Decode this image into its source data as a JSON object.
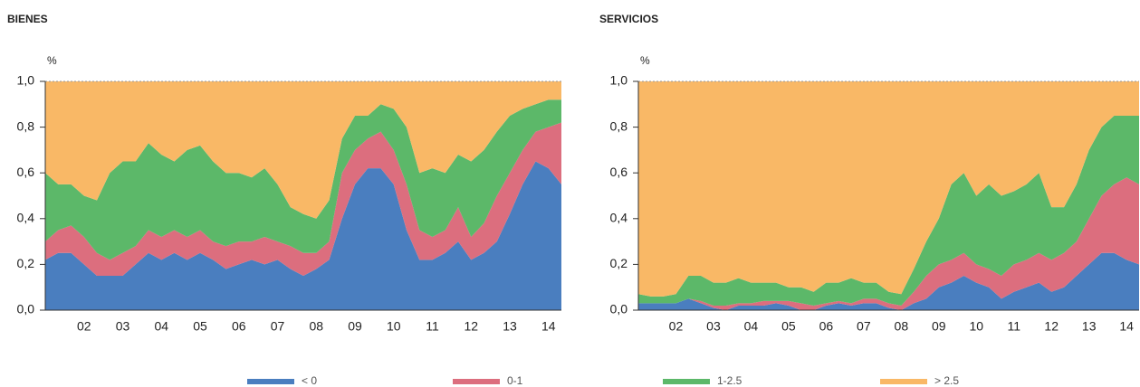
{
  "chart_data": [
    {
      "type": "stacked-area",
      "title": "BIENES",
      "y_unit": "%",
      "legend": "bottom",
      "categories": [
        null,
        null,
        null,
        "02",
        null,
        null,
        "03",
        null,
        null,
        "04",
        null,
        null,
        "05",
        null,
        null,
        "06",
        null,
        null,
        "07",
        null,
        null,
        "08",
        null,
        null,
        "09",
        null,
        null,
        "10",
        null,
        null,
        "11",
        null,
        null,
        "12",
        null,
        null,
        "13",
        null,
        null,
        "14",
        null
      ],
      "ylim": [
        0,
        1
      ],
      "yticks": [
        {
          "value": 0,
          "label": "0,0"
        },
        {
          "value": 0.2,
          "label": "0,2"
        },
        {
          "value": 0.4,
          "label": "0,4"
        },
        {
          "value": 0.6,
          "label": "0,6"
        },
        {
          "value": 0.8,
          "label": "0,8"
        },
        {
          "value": 1,
          "label": "1,0"
        }
      ],
      "series": [
        {
          "name": "< 0",
          "color": "#4a7ebf",
          "values": [
            0.22,
            0.25,
            0.25,
            0.2,
            0.15,
            0.15,
            0.15,
            0.2,
            0.25,
            0.22,
            0.25,
            0.22,
            0.25,
            0.22,
            0.18,
            0.2,
            0.22,
            0.2,
            0.22,
            0.18,
            0.15,
            0.18,
            0.22,
            0.4,
            0.55,
            0.62,
            0.62,
            0.55,
            0.35,
            0.22,
            0.22,
            0.25,
            0.3,
            0.22,
            0.25,
            0.3,
            0.42,
            0.55,
            0.65,
            0.62,
            0.55
          ]
        },
        {
          "name": "0-1",
          "color": "#dc6e7e",
          "values": [
            0.08,
            0.1,
            0.12,
            0.12,
            0.1,
            0.07,
            0.1,
            0.08,
            0.1,
            0.1,
            0.1,
            0.1,
            0.1,
            0.08,
            0.1,
            0.1,
            0.08,
            0.12,
            0.08,
            0.1,
            0.1,
            0.07,
            0.08,
            0.2,
            0.15,
            0.13,
            0.16,
            0.15,
            0.2,
            0.13,
            0.1,
            0.1,
            0.15,
            0.1,
            0.13,
            0.2,
            0.18,
            0.15,
            0.13,
            0.18,
            0.27
          ]
        },
        {
          "name": "1-2.5",
          "color": "#5cb869",
          "values": [
            0.3,
            0.2,
            0.18,
            0.18,
            0.23,
            0.38,
            0.4,
            0.37,
            0.38,
            0.36,
            0.3,
            0.38,
            0.37,
            0.35,
            0.32,
            0.3,
            0.28,
            0.3,
            0.25,
            0.17,
            0.17,
            0.15,
            0.18,
            0.15,
            0.15,
            0.1,
            0.12,
            0.18,
            0.25,
            0.25,
            0.3,
            0.25,
            0.23,
            0.33,
            0.32,
            0.28,
            0.25,
            0.18,
            0.12,
            0.12,
            0.1
          ]
        },
        {
          "name": "> 2.5",
          "color": "#f9b866",
          "values": [
            0.4,
            0.45,
            0.45,
            0.5,
            0.52,
            0.4,
            0.35,
            0.35,
            0.27,
            0.32,
            0.35,
            0.3,
            0.28,
            0.35,
            0.4,
            0.4,
            0.42,
            0.38,
            0.45,
            0.55,
            0.58,
            0.6,
            0.52,
            0.25,
            0.15,
            0.15,
            0.1,
            0.12,
            0.2,
            0.4,
            0.38,
            0.4,
            0.32,
            0.35,
            0.3,
            0.22,
            0.15,
            0.12,
            0.1,
            0.08,
            0.08
          ]
        }
      ]
    },
    {
      "type": "stacked-area",
      "title": "SERVICIOS",
      "y_unit": "%",
      "categories": [
        null,
        null,
        null,
        "02",
        null,
        null,
        "03",
        null,
        null,
        "04",
        null,
        null,
        "05",
        null,
        null,
        "06",
        null,
        null,
        "07",
        null,
        null,
        "08",
        null,
        null,
        "09",
        null,
        null,
        "10",
        null,
        null,
        "11",
        null,
        null,
        "12",
        null,
        null,
        "13",
        null,
        null,
        "14",
        null
      ],
      "ylim": [
        0,
        1
      ],
      "yticks": [
        {
          "value": 0,
          "label": "0,0"
        },
        {
          "value": 0.2,
          "label": "0,2"
        },
        {
          "value": 0.4,
          "label": "0,4"
        },
        {
          "value": 0.6,
          "label": "0,6"
        },
        {
          "value": 0.8,
          "label": "0,8"
        },
        {
          "value": 1,
          "label": "1,0"
        }
      ],
      "series": [
        {
          "color": "#4a7ebf",
          "values": [
            0.03,
            0.03,
            0.03,
            0.03,
            0.05,
            0.03,
            0.01,
            0,
            0.02,
            0.02,
            0.02,
            0.03,
            0.02,
            0,
            0,
            0.02,
            0.03,
            0.02,
            0.03,
            0.03,
            0.01,
            0,
            0.03,
            0.05,
            0.1,
            0.12,
            0.15,
            0.12,
            0.1,
            0.05,
            0.08,
            0.1,
            0.12,
            0.08,
            0.1,
            0.15,
            0.2,
            0.25,
            0.25,
            0.22,
            0.2
          ]
        },
        {
          "color": "#dc6e7e",
          "values": [
            0,
            0,
            0,
            0,
            0,
            0.01,
            0.01,
            0.02,
            0.01,
            0.01,
            0.02,
            0.01,
            0.02,
            0.03,
            0.02,
            0.01,
            0.01,
            0.01,
            0.02,
            0.02,
            0.02,
            0.02,
            0.05,
            0.1,
            0.1,
            0.1,
            0.1,
            0.08,
            0.08,
            0.1,
            0.12,
            0.12,
            0.13,
            0.14,
            0.15,
            0.15,
            0.2,
            0.25,
            0.3,
            0.36,
            0.35
          ]
        },
        {
          "color": "#5cb869",
          "values": [
            0.04,
            0.03,
            0.03,
            0.04,
            0.1,
            0.11,
            0.1,
            0.1,
            0.11,
            0.09,
            0.08,
            0.08,
            0.06,
            0.07,
            0.06,
            0.09,
            0.08,
            0.11,
            0.07,
            0.07,
            0.05,
            0.05,
            0.1,
            0.15,
            0.2,
            0.33,
            0.35,
            0.3,
            0.37,
            0.35,
            0.32,
            0.33,
            0.35,
            0.23,
            0.2,
            0.25,
            0.3,
            0.3,
            0.3,
            0.27,
            0.3
          ]
        },
        {
          "color": "#f9b866",
          "values": [
            0.93,
            0.94,
            0.94,
            0.93,
            0.85,
            0.85,
            0.88,
            0.88,
            0.86,
            0.88,
            0.88,
            0.88,
            0.9,
            0.9,
            0.92,
            0.88,
            0.88,
            0.86,
            0.88,
            0.88,
            0.92,
            0.93,
            0.82,
            0.7,
            0.6,
            0.45,
            0.4,
            0.5,
            0.45,
            0.5,
            0.48,
            0.45,
            0.4,
            0.55,
            0.55,
            0.45,
            0.3,
            0.2,
            0.15,
            0.15,
            0.15
          ]
        }
      ]
    }
  ]
}
